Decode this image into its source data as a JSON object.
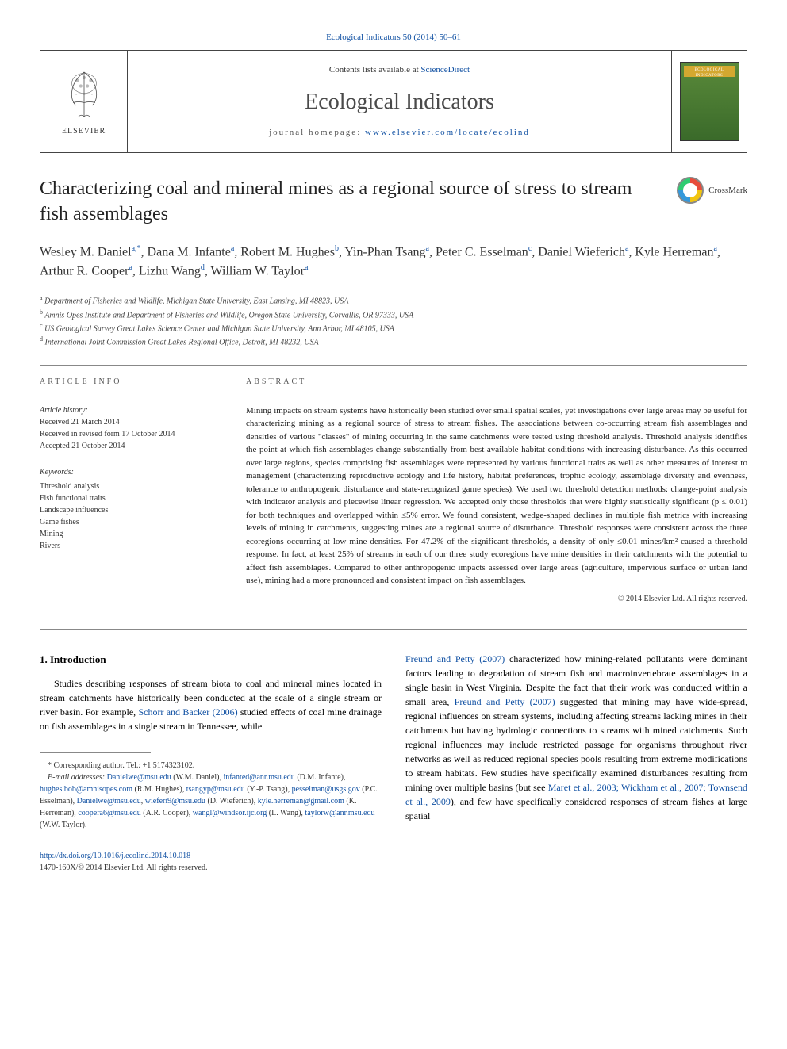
{
  "top_citation": "Ecological Indicators 50 (2014) 50–61",
  "masthead": {
    "contents_prefix": "Contents lists available at ",
    "contents_link": "ScienceDirect",
    "journal_name": "Ecological Indicators",
    "homepage_prefix": "journal homepage: ",
    "homepage_url": "www.elsevier.com/locate/ecolind",
    "publisher": "ELSEVIER",
    "cover_label": "ECOLOGICAL INDICATORS"
  },
  "crossmark_label": "CrossMark",
  "title": "Characterizing coal and mineral mines as a regional source of stress to stream fish assemblages",
  "authors_html": "Wesley M. Daniel<sup>a,*</sup>, Dana M. Infante<sup>a</sup>, Robert M. Hughes<sup>b</sup>, Yin-Phan Tsang<sup>a</sup>, Peter C. Esselman<sup>c</sup>, Daniel Wieferich<sup>a</sup>, Kyle Herreman<sup>a</sup>, Arthur R. Cooper<sup>a</sup>, Lizhu Wang<sup>d</sup>, William W. Taylor<sup>a</sup>",
  "affiliations": [
    "a Department of Fisheries and Wildlife, Michigan State University, East Lansing, MI 48823, USA",
    "b Amnis Opes Institute and Department of Fisheries and Wildlife, Oregon State University, Corvallis, OR 97333, USA",
    "c US Geological Survey Great Lakes Science Center and Michigan State University, Ann Arbor, MI 48105, USA",
    "d International Joint Commission Great Lakes Regional Office, Detroit, MI 48232, USA"
  ],
  "article_info_label": "ARTICLE INFO",
  "abstract_label": "ABSTRACT",
  "history": {
    "label": "Article history:",
    "received": "Received 21 March 2014",
    "revised": "Received in revised form 17 October 2014",
    "accepted": "Accepted 21 October 2014"
  },
  "keywords": {
    "label": "Keywords:",
    "items": [
      "Threshold analysis",
      "Fish functional traits",
      "Landscape influences",
      "Game fishes",
      "Mining",
      "Rivers"
    ]
  },
  "abstract": "Mining impacts on stream systems have historically been studied over small spatial scales, yet investigations over large areas may be useful for characterizing mining as a regional source of stress to stream fishes. The associations between co-occurring stream fish assemblages and densities of various \"classes\" of mining occurring in the same catchments were tested using threshold analysis. Threshold analysis identifies the point at which fish assemblages change substantially from best available habitat conditions with increasing disturbance. As this occurred over large regions, species comprising fish assemblages were represented by various functional traits as well as other measures of interest to management (characterizing reproductive ecology and life history, habitat preferences, trophic ecology, assemblage diversity and evenness, tolerance to anthropogenic disturbance and state-recognized game species). We used two threshold detection methods: change-point analysis with indicator analysis and piecewise linear regression. We accepted only those thresholds that were highly statistically significant (p ≤ 0.01) for both techniques and overlapped within ≤5% error. We found consistent, wedge-shaped declines in multiple fish metrics with increasing levels of mining in catchments, suggesting mines are a regional source of disturbance. Threshold responses were consistent across the three ecoregions occurring at low mine densities. For 47.2% of the significant thresholds, a density of only ≤0.01 mines/km² caused a threshold response. In fact, at least 25% of streams in each of our three study ecoregions have mine densities in their catchments with the potential to affect fish assemblages. Compared to other anthropogenic impacts assessed over large areas (agriculture, impervious surface or urban land use), mining had a more pronounced and consistent impact on fish assemblages.",
  "abstract_copyright": "© 2014 Elsevier Ltd. All rights reserved.",
  "intro_heading": "1. Introduction",
  "intro_left": "Studies describing responses of stream biota to coal and mineral mines located in stream catchments have historically been conducted at the scale of a single stream or river basin. For example, <a>Schorr and Backer (2006)</a> studied effects of coal mine drainage on fish assemblages in a single stream in Tennessee, while",
  "intro_right": "<a>Freund and Petty (2007)</a> characterized how mining-related pollutants were dominant factors leading to degradation of stream fish and macroinvertebrate assemblages in a single basin in West Virginia. Despite the fact that their work was conducted within a small area, <a>Freund and Petty (2007)</a> suggested that mining may have wide-spread, regional influences on stream systems, including affecting streams lacking mines in their catchments but having hydrologic connections to streams with mined catchments. Such regional influences may include restricted passage for organisms throughout river networks as well as reduced regional species pools resulting from extreme modifications to stream habitats. Few studies have specifically examined disturbances resulting from mining over multiple basins (but see <a>Maret et al., 2003; Wickham et al., 2007; Townsend et al., 2009</a>), and few have specifically considered responses of stream fishes at large spatial",
  "footnotes": {
    "corresponding": "* Corresponding author. Tel.: +1 5174323102.",
    "emails_label": "E-mail addresses:",
    "emails": "<a>Danielwe@msu.edu</a> (W.M. Daniel), <a>infanted@anr.msu.edu</a> (D.M. Infante), <a>hughes.bob@amnisopes.com</a> (R.M. Hughes), <a>tsangyp@msu.edu</a> (Y.-P. Tsang), <a>pesselman@usgs.gov</a> (P.C. Esselman), <a>Danielwe@msu.edu</a>, <a>wieferi9@msu.edu</a> (D. Wieferich), <a>kyle.herreman@gmail.com</a> (K. Herreman), <a>coopera6@msu.edu</a> (A.R. Cooper), <a>wangl@windsor.ijc.org</a> (L. Wang), <a>taylorw@anr.msu.edu</a> (W.W. Taylor)."
  },
  "doi": "http://dx.doi.org/10.1016/j.ecolind.2014.10.018",
  "doi_copyright": "1470-160X/© 2014 Elsevier Ltd. All rights reserved."
}
